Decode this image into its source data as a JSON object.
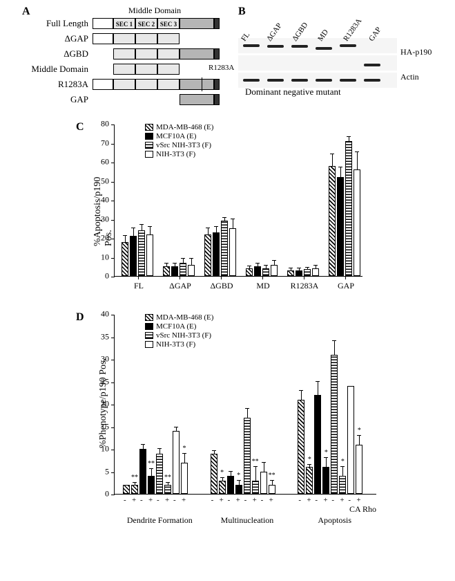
{
  "panelA": {
    "label": "A",
    "header": "Middle Domain",
    "sec_labels": [
      "SEC 1",
      "SEC 2",
      "SEC 3"
    ],
    "r1283a_annot": "R1283A",
    "constructs": [
      {
        "name": "Full Length",
        "gbd": true,
        "md": true,
        "gap": true,
        "mut": false
      },
      {
        "name": "ΔGAP",
        "gbd": true,
        "md": true,
        "gap": false,
        "mut": false
      },
      {
        "name": "ΔGBD",
        "gbd": false,
        "md": true,
        "gap": true,
        "mut": false
      },
      {
        "name": "Middle Domain",
        "gbd": false,
        "md": true,
        "gap": false,
        "mut": false
      },
      {
        "name": "R1283A",
        "gbd": true,
        "md": true,
        "gap": true,
        "mut": true
      },
      {
        "name": "GAP",
        "gbd": false,
        "md": false,
        "gap": true,
        "mut": false
      }
    ],
    "colors": {
      "gbd": "#ffffff",
      "md": "#e8e8e8",
      "gap": "#b5b5b5",
      "end": "#333333",
      "border": "#000000"
    }
  },
  "panelB": {
    "label": "B",
    "lane_labels": [
      "FL",
      "ΔGAP",
      "ΔGBD",
      "MD",
      "R1283A",
      "GAP"
    ],
    "row_labels": [
      "HA-p190",
      "",
      "Actin"
    ],
    "dominant_text": "Dominant negative mutant",
    "bands": [
      [
        {
          "y": 6
        },
        {
          "y": 7
        },
        {
          "y": 7
        },
        {
          "y": 10
        },
        {
          "y": 6
        },
        {
          "y": null
        }
      ],
      [
        {
          "y": null
        },
        {
          "y": null
        },
        {
          "y": null
        },
        {
          "y": null
        },
        {
          "y": null
        },
        {
          "y": 9
        }
      ],
      [
        {
          "y": 6
        },
        {
          "y": 6
        },
        {
          "y": 6
        },
        {
          "y": 6
        },
        {
          "y": 6
        },
        {
          "y": 6
        }
      ]
    ]
  },
  "panelC": {
    "label": "C",
    "y_label": "%Apoptosis/p190 Pos.",
    "y_max": 80,
    "y_step": 10,
    "legend": [
      {
        "name": "MDA-MB-468 (E)",
        "pattern": "diag"
      },
      {
        "name": "MCF10A (E)",
        "pattern": "solid"
      },
      {
        "name": "vSrc NIH-3T3 (F)",
        "pattern": "horiz"
      },
      {
        "name": "NIH-3T3 (F)",
        "pattern": "white"
      }
    ],
    "groups": [
      "FL",
      "ΔGAP",
      "ΔGBD",
      "MD",
      "R1283A",
      "GAP"
    ],
    "data": [
      [
        {
          "v": 18,
          "e": 3
        },
        {
          "v": 21,
          "e": 4
        },
        {
          "v": 24,
          "e": 3
        },
        {
          "v": 22,
          "e": 4
        }
      ],
      [
        {
          "v": 5,
          "e": 1.5
        },
        {
          "v": 5,
          "e": 1.5
        },
        {
          "v": 7,
          "e": 2
        },
        {
          "v": 6,
          "e": 3
        }
      ],
      [
        {
          "v": 22,
          "e": 3
        },
        {
          "v": 23,
          "e": 3
        },
        {
          "v": 29,
          "e": 1.5
        },
        {
          "v": 25,
          "e": 5
        }
      ],
      [
        {
          "v": 4,
          "e": 1
        },
        {
          "v": 5,
          "e": 1.5
        },
        {
          "v": 4,
          "e": 1.5
        },
        {
          "v": 6,
          "e": 2
        }
      ],
      [
        {
          "v": 3,
          "e": 1
        },
        {
          "v": 3,
          "e": 1
        },
        {
          "v": 3.5,
          "e": 1
        },
        {
          "v": 4,
          "e": 1.5
        }
      ],
      [
        {
          "v": 58,
          "e": 6
        },
        {
          "v": 52,
          "e": 5
        },
        {
          "v": 71,
          "e": 2
        },
        {
          "v": 56,
          "e": 9
        }
      ]
    ],
    "colors": {
      "border": "#000",
      "bg": "#fff"
    }
  },
  "panelD": {
    "label": "D",
    "y_label": "%Phenotype/p190 Pos.",
    "y_max": 40,
    "y_step": 5,
    "legend": [
      {
        "name": "MDA-MB-468 (E)",
        "pattern": "diag"
      },
      {
        "name": "MCF10A (E)",
        "pattern": "solid"
      },
      {
        "name": "vSrc NIH-3T3 (F)",
        "pattern": "horiz"
      },
      {
        "name": "NIH-3T3 (F)",
        "pattern": "white"
      }
    ],
    "groups": [
      "Dendrite Formation",
      "Multinucleation",
      "Apoptosis"
    ],
    "ca_rho_label": "CA Rho",
    "pm_labels": [
      "-",
      "+"
    ],
    "data": [
      [
        {
          "v": 2,
          "e": 0,
          "s": ""
        },
        {
          "v": 2,
          "e": 0.5,
          "s": "**"
        },
        {
          "v": 10,
          "e": 1,
          "s": ""
        },
        {
          "v": 4,
          "e": 1.5,
          "s": "**"
        },
        {
          "v": 9,
          "e": 1,
          "s": ""
        },
        {
          "v": 2,
          "e": 0.5,
          "s": "**"
        },
        {
          "v": 14,
          "e": 0.7,
          "s": ""
        },
        {
          "v": 7,
          "e": 2,
          "s": "*"
        }
      ],
      [
        {
          "v": 9,
          "e": 0.5,
          "s": ""
        },
        {
          "v": 3,
          "e": 0.5,
          "s": "*"
        },
        {
          "v": 4,
          "e": 1,
          "s": ""
        },
        {
          "v": 2,
          "e": 1,
          "s": "*"
        },
        {
          "v": 17,
          "e": 2,
          "s": ""
        },
        {
          "v": 3,
          "e": 3,
          "s": "**"
        },
        {
          "v": 5,
          "e": 2,
          "s": ""
        },
        {
          "v": 2,
          "e": 1,
          "s": "**"
        }
      ],
      [
        {
          "v": 21,
          "e": 2,
          "s": ""
        },
        {
          "v": 6,
          "e": 0.5,
          "s": "*"
        },
        {
          "v": 22,
          "e": 3,
          "s": ""
        },
        {
          "v": 6,
          "e": 2,
          "s": "*"
        },
        {
          "v": 31,
          "e": 3,
          "s": ""
        },
        {
          "v": 4,
          "e": 2,
          "s": "*"
        },
        {
          "v": 24,
          "e": 0,
          "s": ""
        },
        {
          "v": 11,
          "e": 2,
          "s": "*"
        }
      ]
    ]
  },
  "patterns": {
    "diag": "repeating-linear-gradient(45deg,#000 0,#000 1.5px,#fff 1.5px,#fff 4px)",
    "solid": "#000",
    "horiz": "repeating-linear-gradient(0deg,#000 0,#000 1.5px,#fff 1.5px,#fff 4px)",
    "white": "#fff"
  }
}
